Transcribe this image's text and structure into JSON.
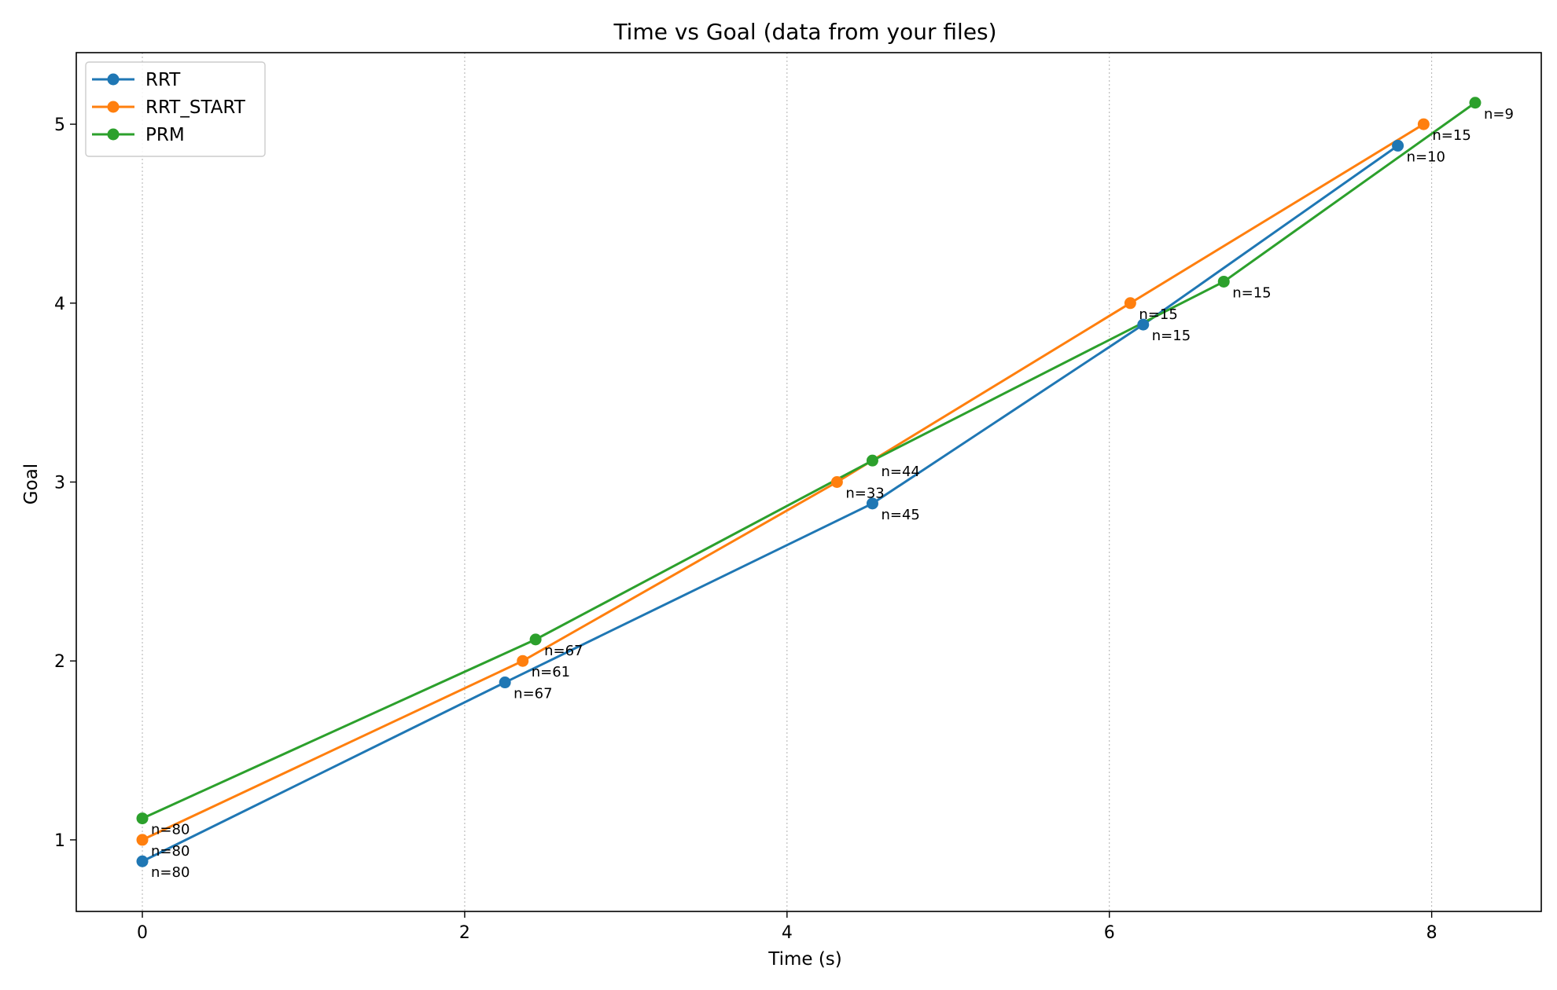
{
  "chart_data": {
    "type": "line",
    "title": "Time vs Goal (data from your files)",
    "xlabel": "Time (s)",
    "ylabel": "Goal",
    "xlim": [
      -0.41,
      8.68
    ],
    "ylim": [
      0.6,
      5.4
    ],
    "xticks": [
      0,
      2,
      4,
      6,
      8
    ],
    "yticks": [
      1,
      2,
      3,
      4,
      5
    ],
    "grid": "vertical dotted",
    "legend_position": "top-left",
    "series": [
      {
        "name": "RRT",
        "color": "#1f77b4",
        "points": [
          {
            "x": 0.0,
            "y": 0.88,
            "label": "n=80"
          },
          {
            "x": 2.25,
            "y": 1.88,
            "label": "n=67"
          },
          {
            "x": 4.53,
            "y": 2.88,
            "label": "n=45"
          },
          {
            "x": 6.21,
            "y": 3.88,
            "label": "n=15"
          },
          {
            "x": 7.79,
            "y": 4.88,
            "label": "n=10"
          }
        ]
      },
      {
        "name": "RRT_START",
        "color": "#ff7f0e",
        "points": [
          {
            "x": 0.0,
            "y": 1.0,
            "label": "n=80"
          },
          {
            "x": 2.36,
            "y": 2.0,
            "label": "n=61"
          },
          {
            "x": 4.31,
            "y": 3.0,
            "label": "n=33"
          },
          {
            "x": 6.13,
            "y": 4.0,
            "label": "n=15"
          },
          {
            "x": 7.95,
            "y": 5.0,
            "label": "n=15"
          }
        ]
      },
      {
        "name": "PRM",
        "color": "#2ca02c",
        "points": [
          {
            "x": 0.0,
            "y": 1.12,
            "label": "n=80"
          },
          {
            "x": 2.44,
            "y": 2.12,
            "label": "n=67"
          },
          {
            "x": 4.53,
            "y": 3.12,
            "label": "n=44"
          },
          {
            "x": 6.71,
            "y": 4.12,
            "label": "n=15"
          },
          {
            "x": 8.27,
            "y": 5.12,
            "label": "n=9"
          }
        ]
      }
    ]
  }
}
